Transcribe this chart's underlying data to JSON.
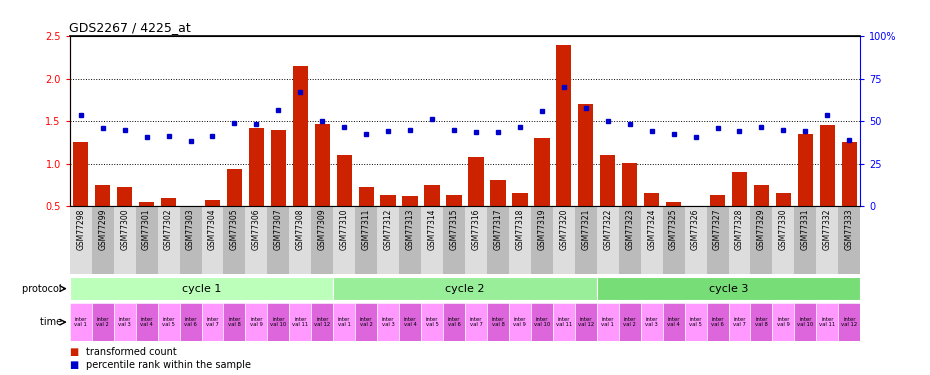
{
  "title": "GDS2267 / 4225_at",
  "samples": [
    "GSM77298",
    "GSM77299",
    "GSM77300",
    "GSM77301",
    "GSM77302",
    "GSM77303",
    "GSM77304",
    "GSM77305",
    "GSM77306",
    "GSM77307",
    "GSM77308",
    "GSM77309",
    "GSM77310",
    "GSM77311",
    "GSM77312",
    "GSM77313",
    "GSM77314",
    "GSM77315",
    "GSM77316",
    "GSM77317",
    "GSM77318",
    "GSM77319",
    "GSM77320",
    "GSM77321",
    "GSM77322",
    "GSM77323",
    "GSM77324",
    "GSM77325",
    "GSM77326",
    "GSM77327",
    "GSM77328",
    "GSM77329",
    "GSM77330",
    "GSM77331",
    "GSM77332",
    "GSM77333"
  ],
  "bar_values": [
    1.25,
    0.75,
    0.72,
    0.55,
    0.6,
    0.5,
    0.57,
    0.94,
    1.42,
    1.4,
    2.15,
    1.47,
    1.1,
    0.72,
    0.63,
    0.62,
    0.75,
    0.63,
    1.08,
    0.81,
    0.65,
    1.3,
    2.4,
    1.7,
    1.1,
    1.01,
    0.65,
    0.55,
    0.5,
    0.63,
    0.9,
    0.75,
    0.65,
    1.35,
    1.45,
    1.25
  ],
  "dot_values": [
    1.57,
    1.42,
    1.4,
    1.31,
    1.32,
    1.27,
    1.32,
    1.48,
    1.47,
    1.63,
    1.84,
    1.5,
    1.43,
    1.35,
    1.38,
    1.4,
    1.52,
    1.4,
    1.37,
    1.37,
    1.43,
    1.62,
    1.9,
    1.65,
    1.5,
    1.47,
    1.38,
    1.35,
    1.31,
    1.42,
    1.38,
    1.43,
    1.4,
    1.38,
    1.57,
    1.28
  ],
  "ylim": [
    0.5,
    2.5
  ],
  "yticks_left": [
    0.5,
    1.0,
    1.5,
    2.0,
    2.5
  ],
  "yticks_right": [
    0,
    25,
    50,
    75,
    100
  ],
  "ytick_labels_right": [
    "0",
    "25",
    "50",
    "75",
    "100%"
  ],
  "hlines": [
    1.0,
    1.5,
    2.0
  ],
  "bar_color": "#cc2200",
  "dot_color": "#0000cc",
  "background_color": "#ffffff",
  "cycle1_color": "#bbffbb",
  "cycle2_color": "#99ee99",
  "cycle3_color": "#77dd77",
  "time_color_even": "#ff99ff",
  "time_color_odd": "#dd66dd",
  "protocol_label": "protocol",
  "time_label": "time",
  "cycle1_label": "cycle 1",
  "cycle2_label": "cycle 2",
  "cycle3_label": "cycle 3",
  "cycle1_range": [
    0,
    11
  ],
  "cycle2_range": [
    12,
    23
  ],
  "cycle3_range": [
    24,
    35
  ],
  "legend_bar_label": "transformed count",
  "legend_dot_label": "percentile rank within the sample",
  "xlabel_bg_even": "#dddddd",
  "xlabel_bg_odd": "#bbbbbb"
}
